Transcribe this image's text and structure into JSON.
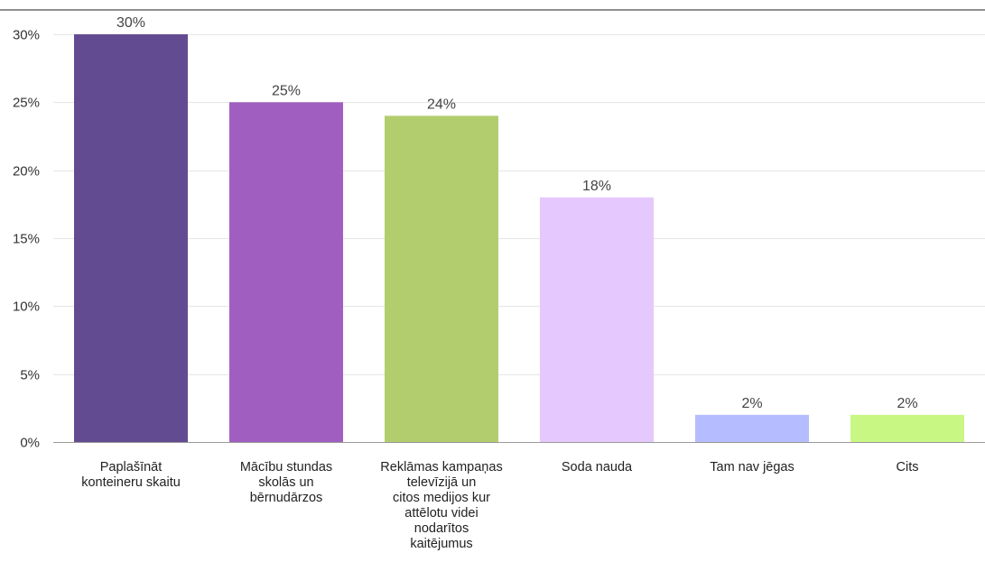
{
  "chart_data": {
    "type": "bar",
    "categories": [
      "Paplašīnāt konteineru skaitu",
      "Mācību stundas skolās un bērnudārzos",
      "Reklāmas kampaņas televīzijā un citos medijos kur attēlotu videi nodarītos kaitējumus",
      "Soda nauda",
      "Tam nav jēgas",
      "Cits"
    ],
    "category_lines": [
      [
        "Paplašīnāt",
        "konteineru skaitu"
      ],
      [
        "Mācību stundas",
        "skolās un",
        "bērnudārzos"
      ],
      [
        "Reklāmas kampaņas",
        "televīzijā un",
        "citos medijos kur",
        "attēlotu videi",
        "nodarītos",
        "kaitējumus"
      ],
      [
        "Soda nauda"
      ],
      [
        "Tam nav jēgas"
      ],
      [
        "Cits"
      ]
    ],
    "values": [
      30,
      25,
      24,
      18,
      2,
      2
    ],
    "value_labels": [
      "30%",
      "25%",
      "24%",
      "18%",
      "2%",
      "2%"
    ],
    "colors": [
      "#634b91",
      "#a05fc0",
      "#b2cd6d",
      "#e5c8fd",
      "#b5bcff",
      "#c9f783"
    ],
    "yticks": [
      0,
      5,
      10,
      15,
      20,
      25,
      30
    ],
    "ytick_labels": [
      "0%",
      "5%",
      "10%",
      "15%",
      "20%",
      "25%",
      "30%"
    ],
    "ylim": [
      0,
      30
    ],
    "grid": true,
    "title": "",
    "xlabel": "",
    "ylabel": ""
  }
}
